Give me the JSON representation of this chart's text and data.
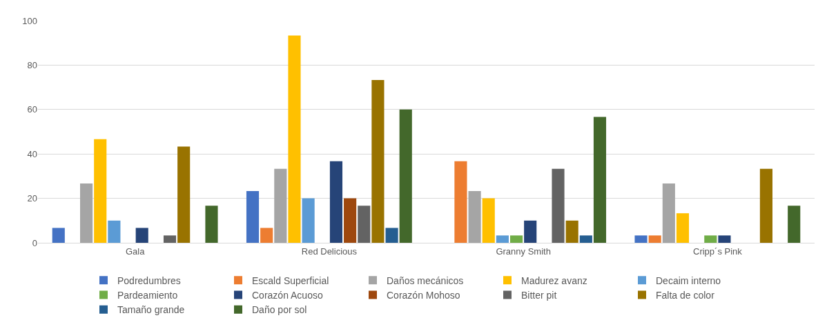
{
  "chart_data": {
    "type": "bar",
    "categories": [
      "Gala",
      "Red Delicious",
      "Granny Smith",
      "Cripp´s Pink"
    ],
    "series": [
      {
        "name": "Podredumbres",
        "color": "#4472c4",
        "values": [
          6.7,
          23.3,
          0,
          3.3
        ]
      },
      {
        "name": "Escald Superficial",
        "color": "#ed7d31",
        "values": [
          0,
          6.7,
          36.7,
          3.3
        ]
      },
      {
        "name": "Daños mecánicos",
        "color": "#a5a5a5",
        "values": [
          26.7,
          33.3,
          23.3,
          26.7
        ]
      },
      {
        "name": "Madurez avanz",
        "color": "#ffc000",
        "values": [
          46.7,
          93.3,
          20,
          13.3
        ]
      },
      {
        "name": "Decaim interno",
        "color": "#5b9bd5",
        "values": [
          10,
          20,
          3.3,
          0
        ]
      },
      {
        "name": "Pardeamiento",
        "color": "#70ad47",
        "values": [
          0,
          0,
          3.3,
          3.3
        ]
      },
      {
        "name": "Corazón Acuoso",
        "color": "#264478",
        "values": [
          6.7,
          36.7,
          10,
          3.3
        ]
      },
      {
        "name": "Corazón Mohoso",
        "color": "#9e480e",
        "values": [
          0,
          20,
          0,
          0
        ]
      },
      {
        "name": "Bitter pit",
        "color": "#636363",
        "values": [
          3.3,
          16.7,
          33.3,
          0
        ]
      },
      {
        "name": "Falta de color",
        "color": "#997300",
        "values": [
          43.3,
          73.3,
          10,
          33.3
        ]
      },
      {
        "name": "Tamaño grande",
        "color": "#255e91",
        "values": [
          0,
          6.7,
          3.3,
          0
        ]
      },
      {
        "name": "Daño por sol",
        "color": "#43682b",
        "values": [
          16.7,
          60,
          56.7,
          16.7
        ]
      }
    ],
    "ylim": [
      0,
      100
    ],
    "yticks": [
      0,
      20,
      40,
      60,
      80,
      100
    ],
    "grid": "y",
    "legend": "bottom"
  }
}
